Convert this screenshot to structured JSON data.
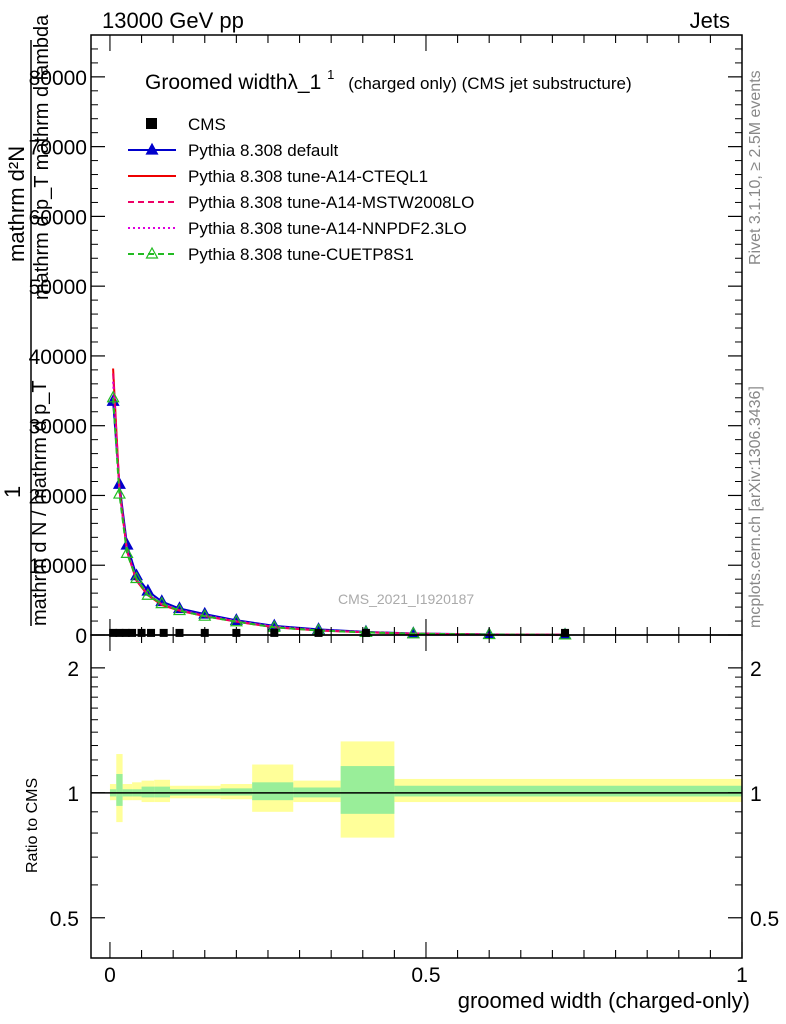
{
  "header": {
    "left": "13000 GeV pp",
    "right": "Jets"
  },
  "side_text": {
    "rivet": "Rivet 3.1.10, ≥ 2.5M events",
    "mcplots": "mcplots.cern.ch [arXiv:1306.3436]"
  },
  "watermark": "CMS_2021_I1920187",
  "chart_data": [
    {
      "type": "line",
      "title": "Groomed widthλ_1",
      "title_sup": "1",
      "title_suffix": "(charged only) (CMS jet substructure)",
      "ylabel_main": "mathrm d²N",
      "ylabel_den": "mathrm d p_T mathrm d lambda",
      "ylabel_sub": "T",
      "ylabel_frac_num": "1",
      "ylabel_frac_den": "mathrm d N / mathrm d p_T",
      "xlim": [
        -0.03,
        1.0
      ],
      "ylim": [
        0,
        86000
      ],
      "yticks": [
        0,
        10000,
        20000,
        30000,
        40000,
        50000,
        60000,
        70000,
        80000
      ],
      "ytick_labels": [
        "0",
        "10000",
        "20000",
        "30000",
        "40000",
        "50000",
        "60000",
        "70000",
        "80000"
      ],
      "legend": [
        {
          "label": "CMS",
          "color": "#000000",
          "marker": "square",
          "dash": "none"
        },
        {
          "label": "Pythia 8.308 default",
          "color": "#0000cc",
          "marker": "triangle",
          "dash": "solid"
        },
        {
          "label": "Pythia 8.308 tune-A14-CTEQL1",
          "color": "#ee0000",
          "marker": "none",
          "dash": "solid"
        },
        {
          "label": "Pythia 8.308 tune-A14-MSTW2008LO",
          "color": "#ee0066",
          "marker": "none",
          "dash": "dashed"
        },
        {
          "label": "Pythia 8.308 tune-A14-NNPDF2.3LO",
          "color": "#dd00dd",
          "marker": "none",
          "dash": "dotted"
        },
        {
          "label": "Pythia 8.308 tune-CUETP8S1",
          "color": "#22bb22",
          "marker": "open-triangle",
          "dash": "dashed"
        }
      ],
      "x": [
        0.005,
        0.015,
        0.027,
        0.042,
        0.06,
        0.082,
        0.11,
        0.15,
        0.2,
        0.26,
        0.33,
        0.405,
        0.48,
        0.6,
        0.72
      ],
      "series": [
        {
          "name": "CMS",
          "values": [
            500,
            450,
            400,
            350,
            300,
            260,
            220,
            180,
            150,
            120,
            80,
            50,
            30,
            10,
            5
          ]
        },
        {
          "name": "Pythia 8.308 default",
          "values": [
            33500,
            21600,
            12900,
            8500,
            6300,
            4800,
            3800,
            3000,
            2100,
            1300,
            800,
            450,
            220,
            80,
            30
          ]
        },
        {
          "name": "Pythia 8.308 tune-A14-CTEQL1",
          "values": [
            38200,
            21000,
            12000,
            7800,
            5700,
            4300,
            3500,
            2700,
            1900,
            1100,
            650,
            380,
            190,
            70,
            25
          ]
        },
        {
          "name": "Pythia 8.308 tune-A14-MSTW2008LO",
          "values": [
            37500,
            20900,
            12100,
            7900,
            5800,
            4400,
            3550,
            2750,
            1950,
            1150,
            680,
            390,
            195,
            72,
            26
          ]
        },
        {
          "name": "Pythia 8.308 tune-A14-NNPDF2.3LO",
          "values": [
            36300,
            20700,
            12200,
            8000,
            5900,
            4500,
            3600,
            2800,
            2000,
            1200,
            700,
            400,
            200,
            75,
            28
          ]
        },
        {
          "name": "Pythia 8.308 tune-CUETP8S1",
          "values": [
            34000,
            20200,
            11700,
            8100,
            5700,
            4500,
            3500,
            2700,
            1900,
            1100,
            650,
            370,
            180,
            65,
            22
          ]
        }
      ],
      "cms_marker_x": [
        0.005,
        0.015,
        0.025,
        0.035,
        0.05,
        0.065,
        0.085,
        0.11,
        0.15,
        0.2,
        0.26,
        0.33,
        0.405,
        0.72
      ]
    },
    {
      "type": "area",
      "ylabel": "Ratio to CMS",
      "xlabel": "groomed width (charged-only)",
      "xlim": [
        -0.03,
        1.0
      ],
      "ylim": [
        0.4,
        2.4
      ],
      "log_y": true,
      "yticks": [
        0.5,
        1,
        2
      ],
      "ytick_labels": [
        "0.5",
        "1",
        "2"
      ],
      "xticks": [
        0,
        0.5,
        1
      ],
      "xtick_labels": [
        "0",
        "0.5",
        "1"
      ],
      "bins": [
        {
          "lo": 0.0,
          "hi": 0.01,
          "stat_lo": 0.98,
          "stat_hi": 1.02,
          "tot_lo": 0.96,
          "tot_hi": 1.05
        },
        {
          "lo": 0.01,
          "hi": 0.02,
          "stat_lo": 0.93,
          "stat_hi": 1.11,
          "tot_lo": 0.85,
          "tot_hi": 1.24
        },
        {
          "lo": 0.02,
          "hi": 0.035,
          "stat_lo": 0.98,
          "stat_hi": 1.02,
          "tot_lo": 0.96,
          "tot_hi": 1.05
        },
        {
          "lo": 0.035,
          "hi": 0.05,
          "stat_lo": 0.98,
          "stat_hi": 1.02,
          "tot_lo": 0.96,
          "tot_hi": 1.06
        },
        {
          "lo": 0.05,
          "hi": 0.07,
          "stat_lo": 0.975,
          "stat_hi": 1.035,
          "tot_lo": 0.95,
          "tot_hi": 1.07
        },
        {
          "lo": 0.07,
          "hi": 0.095,
          "stat_lo": 0.975,
          "stat_hi": 1.035,
          "tot_lo": 0.95,
          "tot_hi": 1.075
        },
        {
          "lo": 0.095,
          "hi": 0.125,
          "stat_lo": 0.985,
          "stat_hi": 1.02,
          "tot_lo": 0.97,
          "tot_hi": 1.04
        },
        {
          "lo": 0.125,
          "hi": 0.175,
          "stat_lo": 0.985,
          "stat_hi": 1.02,
          "tot_lo": 0.97,
          "tot_hi": 1.04
        },
        {
          "lo": 0.175,
          "hi": 0.225,
          "stat_lo": 0.985,
          "stat_hi": 1.025,
          "tot_lo": 0.965,
          "tot_hi": 1.05
        },
        {
          "lo": 0.225,
          "hi": 0.29,
          "stat_lo": 0.96,
          "stat_hi": 1.06,
          "tot_lo": 0.9,
          "tot_hi": 1.17
        },
        {
          "lo": 0.29,
          "hi": 0.365,
          "stat_lo": 0.975,
          "stat_hi": 1.03,
          "tot_lo": 0.95,
          "tot_hi": 1.07
        },
        {
          "lo": 0.365,
          "hi": 0.45,
          "stat_lo": 0.89,
          "stat_hi": 1.16,
          "tot_lo": 0.78,
          "tot_hi": 1.33
        },
        {
          "lo": 0.45,
          "hi": 1.0,
          "stat_lo": 0.98,
          "stat_hi": 1.04,
          "tot_lo": 0.95,
          "tot_hi": 1.08
        }
      ]
    }
  ],
  "colors": {
    "stat_band": "#99ee99",
    "total_band": "#ffff99",
    "frame": "#000000"
  }
}
